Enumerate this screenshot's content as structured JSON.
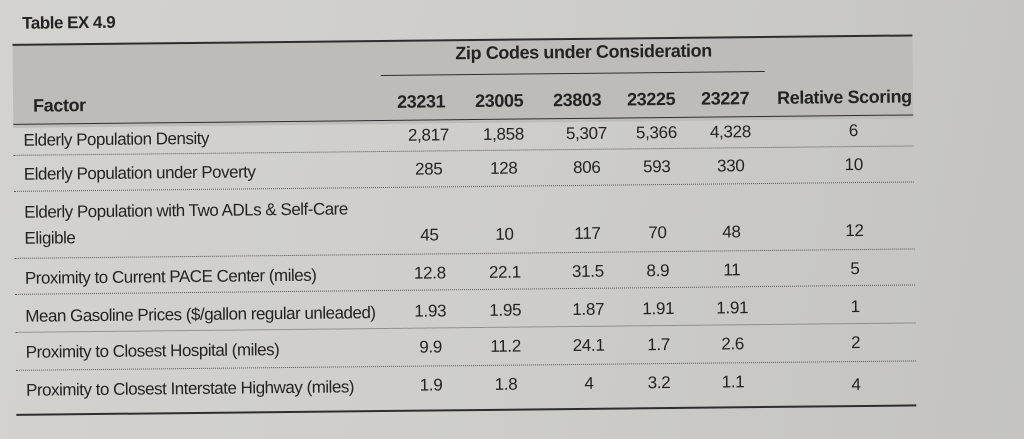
{
  "caption": "Table EX 4.9",
  "group_header": "Zip Codes under Consideration",
  "columns": {
    "factor": "Factor",
    "zips": [
      "23231",
      "23005",
      "23803",
      "23225",
      "23227"
    ],
    "scoring": "Relative Scoring"
  },
  "rows": [
    {
      "factor": "Elderly Population Density",
      "values": [
        "2,817",
        "1,858",
        "5,307",
        "5,366",
        "4,328"
      ],
      "scoring": "6"
    },
    {
      "factor": "Elderly Population under Poverty",
      "values": [
        "285",
        "128",
        "806",
        "593",
        "330"
      ],
      "scoring": "10"
    },
    {
      "factor": "Elderly Population with Two ADLs & Self-Care Eligible",
      "factor_line1": "Elderly Population with Two ADLs & Self-Care",
      "factor_line2": "Eligible",
      "values": [
        "45",
        "10",
        "117",
        "70",
        "48"
      ],
      "scoring": "12"
    },
    {
      "factor": "Proximity to Current PACE Center (miles)",
      "values": [
        "12.8",
        "22.1",
        "31.5",
        "8.9",
        "11"
      ],
      "scoring": "5"
    },
    {
      "factor": "Mean Gasoline Prices ($/gallon regular unleaded)",
      "values": [
        "1.93",
        "1.95",
        "1.87",
        "1.91",
        "1.91"
      ],
      "scoring": "1"
    },
    {
      "factor": "Proximity to Closest Hospital (miles)",
      "values": [
        "9.9",
        "11.2",
        "24.1",
        "1.7",
        "2.6"
      ],
      "scoring": "2"
    },
    {
      "factor": "Proximity to Closest Interstate Highway (miles)",
      "values": [
        "1.9",
        "1.8",
        "4",
        "3.2",
        "1.1"
      ],
      "scoring": "4"
    }
  ]
}
